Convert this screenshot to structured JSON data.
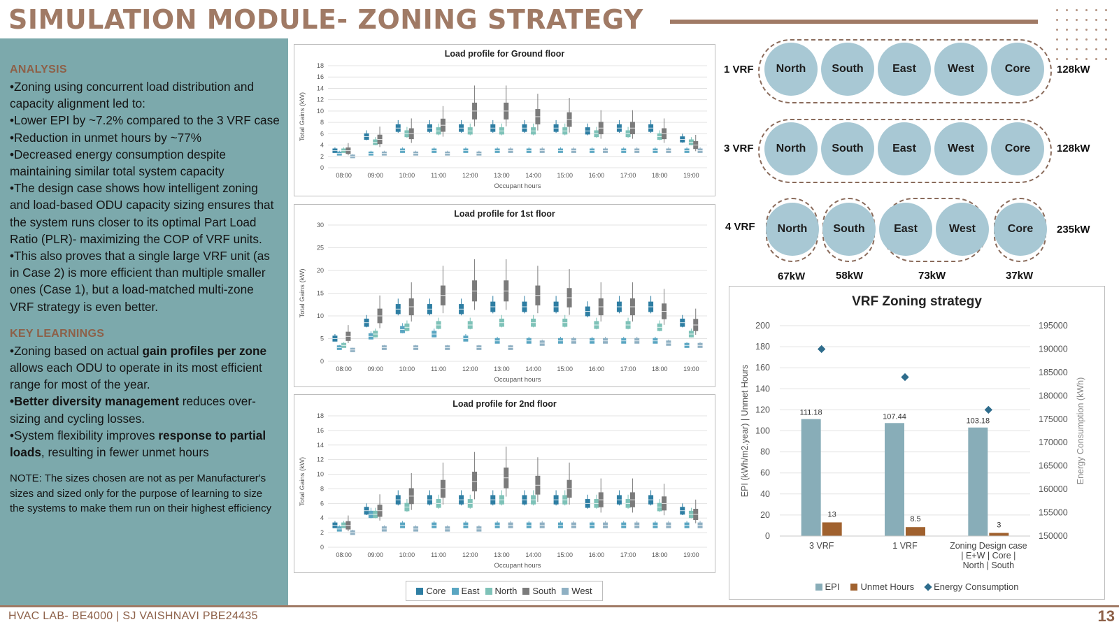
{
  "header": {
    "title": "SIMULATION MODULE- ZONING STRATEGY"
  },
  "analysis": {
    "heading": "ANALYSIS",
    "bullets": [
      "•Zoning using concurrent load distribution and capacity alignment led to:",
      "•Lower EPI by ~7.2% compared to the 3 VRF case",
      "•Reduction in unmet hours by ~77%",
      "•Decreased energy consumption despite maintaining similar total system capacity",
      "•The design case shows how intelligent zoning and load-based ODU capacity sizing ensures that the system runs closer to its optimal Part Load Ratio (PLR)- maximizing the COP of VRF units.",
      "•This also proves that a single large VRF unit (as in Case 2) is more efficient than multiple smaller ones (Case 1), but a load-matched multi-zone VRF strategy is even better."
    ]
  },
  "key_learnings": {
    "heading": "KEY LEARNINGS",
    "b1_a": "•Zoning based on actual ",
    "b1_bold": "gain profiles per zone",
    "b1_b": " allows each ODU to operate in its most efficient range for most of the year.",
    "b2_bold": "•Better diversity management",
    "b2_b": " reduces over-sizing and cycling losses.",
    "b3_a": "•System flexibility improves ",
    "b3_bold": "response to partial loads",
    "b3_b": ", resulting in fewer unmet hours"
  },
  "note": "NOTE: The sizes chosen are not as per Manufacturer's sizes and sized only for the purpose of learning to size the systems to make them run on their highest efficiency",
  "footer": {
    "text": "HVAC LAB- BE4000 | SJ VAISHNAVI PBE24435",
    "page": "13"
  },
  "load_series_colors": {
    "Core": "#2e7ea3",
    "East": "#5aa6c2",
    "North": "#7ec2b8",
    "South": "#7b7b7b",
    "West": "#8fb0c3"
  },
  "load_legend": [
    "Core",
    "East",
    "North",
    "South",
    "West"
  ],
  "chart_data": [
    {
      "type": "box",
      "title": "Load profile for Ground floor",
      "xlabel": "Occupant hours",
      "ylabel": "Total Gains (kW)",
      "ylim": [
        0,
        18
      ],
      "yticks": [
        0,
        2,
        4,
        6,
        8,
        10,
        12,
        14,
        16,
        18
      ],
      "categories": [
        "08:00",
        "09:00",
        "10:00",
        "11:00",
        "12:00",
        "13:00",
        "14:00",
        "15:00",
        "16:00",
        "17:00",
        "18:00",
        "19:00"
      ],
      "series": [
        {
          "name": "Core",
          "medians": [
            3.0,
            5.5,
            7.0,
            7.0,
            7.0,
            7.0,
            7.0,
            7.0,
            6.5,
            7.0,
            7.0,
            5.0
          ]
        },
        {
          "name": "East",
          "medians": [
            2.5,
            2.5,
            3.0,
            3.0,
            3.0,
            3.0,
            3.0,
            3.0,
            3.0,
            3.0,
            3.0,
            3.0
          ]
        },
        {
          "name": "North",
          "medians": [
            3.0,
            4.5,
            6.0,
            6.5,
            6.5,
            6.5,
            6.5,
            6.5,
            6.0,
            6.0,
            5.5,
            4.5
          ]
        },
        {
          "name": "South",
          "medians": [
            3.0,
            5.0,
            6.0,
            7.5,
            10.0,
            10.0,
            9.0,
            8.5,
            7.0,
            7.0,
            6.0,
            4.0
          ]
        },
        {
          "name": "West",
          "medians": [
            2.0,
            2.5,
            2.5,
            2.5,
            2.5,
            3.0,
            3.0,
            3.0,
            3.0,
            3.0,
            3.0,
            3.0
          ]
        }
      ]
    },
    {
      "type": "box",
      "title": "Load profile for 1st floor",
      "xlabel": "Occupant hours",
      "ylabel": "Total Gains (kW)",
      "ylim": [
        0,
        30
      ],
      "yticks": [
        0,
        5,
        10,
        15,
        20,
        25,
        30
      ],
      "categories": [
        "08:00",
        "09:00",
        "10:00",
        "11:00",
        "12:00",
        "13:00",
        "14:00",
        "15:00",
        "16:00",
        "17:00",
        "18:00",
        "19:00"
      ],
      "series": [
        {
          "name": "Core",
          "medians": [
            5.0,
            8.5,
            11.5,
            11.5,
            11.5,
            12.0,
            12.0,
            12.0,
            11.0,
            12.0,
            12.0,
            8.5
          ]
        },
        {
          "name": "East",
          "medians": [
            3.0,
            5.5,
            7.0,
            6.0,
            5.0,
            4.5,
            4.5,
            4.5,
            4.5,
            4.5,
            4.5,
            3.5
          ]
        },
        {
          "name": "North",
          "medians": [
            3.5,
            6.0,
            7.5,
            8.0,
            8.0,
            8.5,
            8.5,
            8.5,
            8.0,
            8.0,
            7.5,
            6.0
          ]
        },
        {
          "name": "South",
          "medians": [
            5.5,
            10.0,
            12.0,
            14.5,
            15.5,
            15.5,
            14.5,
            14.0,
            12.0,
            12.0,
            11.0,
            8.0
          ]
        },
        {
          "name": "West",
          "medians": [
            2.5,
            3.0,
            3.0,
            3.0,
            3.0,
            3.0,
            4.0,
            4.5,
            4.5,
            4.5,
            4.0,
            3.5
          ]
        }
      ]
    },
    {
      "type": "box",
      "title": "Load profile for 2nd floor",
      "xlabel": "Occupant hours",
      "ylabel": "Total Gains (kW)",
      "ylim": [
        0,
        18
      ],
      "yticks": [
        0,
        2,
        4,
        6,
        8,
        10,
        12,
        14,
        16,
        18
      ],
      "categories": [
        "08:00",
        "09:00",
        "10:00",
        "11:00",
        "12:00",
        "13:00",
        "14:00",
        "15:00",
        "16:00",
        "17:00",
        "18:00",
        "19:00"
      ],
      "series": [
        {
          "name": "Core",
          "medians": [
            3.0,
            5.0,
            6.5,
            6.5,
            6.5,
            6.5,
            6.5,
            6.5,
            6.0,
            6.5,
            6.5,
            5.0
          ]
        },
        {
          "name": "East",
          "medians": [
            2.5,
            4.5,
            3.0,
            3.0,
            3.0,
            3.0,
            3.0,
            3.0,
            3.0,
            3.0,
            3.0,
            3.0
          ]
        },
        {
          "name": "North",
          "medians": [
            3.0,
            4.5,
            5.5,
            6.0,
            6.0,
            6.5,
            6.5,
            6.5,
            6.0,
            6.0,
            5.5,
            4.5
          ]
        },
        {
          "name": "South",
          "medians": [
            3.0,
            5.0,
            7.0,
            8.0,
            9.0,
            9.5,
            8.5,
            8.0,
            6.5,
            6.5,
            6.0,
            4.5
          ]
        },
        {
          "name": "West",
          "medians": [
            2.0,
            2.5,
            2.5,
            2.5,
            2.5,
            3.0,
            3.0,
            3.0,
            3.0,
            3.0,
            3.0,
            3.0
          ]
        }
      ]
    },
    {
      "type": "bar",
      "title": "VRF Zoning strategy",
      "categories": [
        "3 VRF",
        "1 VRF",
        "Zoning Design case | E+W | Core | North | South"
      ],
      "category_lines": [
        [
          "3 VRF"
        ],
        [
          "1 VRF"
        ],
        [
          "Zoning Design case",
          "| E+W | Core |",
          "North | South"
        ]
      ],
      "ylabel": "EPI (kWh/m2.year) | Unmet Hours",
      "y2label": "Energy Consumption (kWh)",
      "ylim": [
        0,
        200
      ],
      "yticks": [
        0,
        20,
        40,
        60,
        80,
        100,
        120,
        140,
        160,
        180,
        200
      ],
      "y2lim": [
        150000,
        195000
      ],
      "y2ticks": [
        150000,
        155000,
        160000,
        165000,
        170000,
        175000,
        180000,
        185000,
        190000,
        195000
      ],
      "series": [
        {
          "name": "EPI",
          "values": [
            111.18,
            107.44,
            103.18
          ],
          "labels": [
            "111.18",
            "107.44",
            "103.18"
          ],
          "color": "#88adb8"
        },
        {
          "name": "Unmet Hours",
          "values": [
            13,
            8.5,
            3
          ],
          "labels": [
            "13",
            "8.5",
            "3"
          ],
          "color": "#a0612e"
        },
        {
          "name": "Energy Consumption",
          "axis": "y2",
          "values": [
            190000,
            184000,
            177000
          ],
          "color": "#2e6c8c"
        }
      ]
    }
  ],
  "vrf_configs": {
    "rows": [
      {
        "label": "1 VRF",
        "zones": [
          "North",
          "South",
          "East",
          "West",
          "Core"
        ],
        "capacity": "128kW"
      },
      {
        "label": "3 VRF",
        "zones": [
          "North",
          "South",
          "East",
          "West",
          "Core"
        ],
        "capacity": "128kW"
      },
      {
        "label": "4 VRF",
        "zones": [
          "North",
          "South",
          "East",
          "West",
          "Core"
        ],
        "capacity": "235kW"
      }
    ],
    "group_capacities": [
      "67kW",
      "58kW",
      "73kW",
      "37kW"
    ]
  }
}
